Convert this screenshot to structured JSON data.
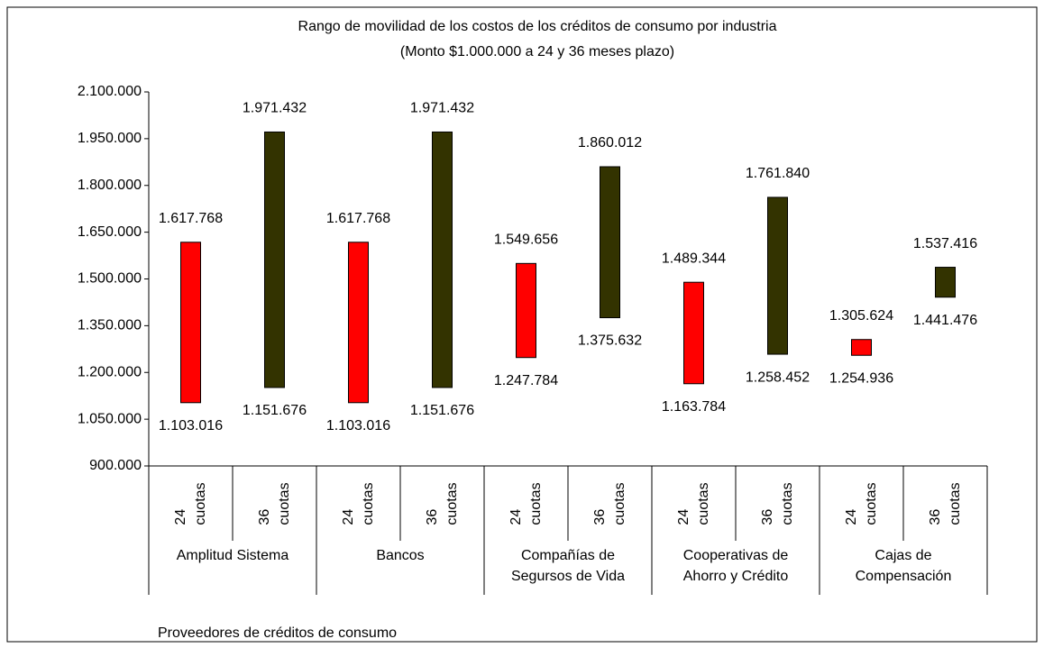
{
  "chart_data": {
    "type": "range-bar",
    "title": "Rango de movilidad de los costos de los créditos de consumo por industria",
    "subtitle": "(Monto $1.000.000 a 24 y 36 meses plazo)",
    "x_label": "Proveedores de créditos de consumo",
    "groups": [
      "Amplitud Sistema",
      "Bancos",
      "Compañías de\nSegursos de Vida",
      "Cooperativas de\nAhorro y Crédito",
      "Cajas de\nCompensación"
    ],
    "categories": [
      "24\ncuotas",
      "36\ncuotas",
      "24\ncuotas",
      "36\ncuotas",
      "24\ncuotas",
      "36\ncuotas",
      "24\ncuotas",
      "36\ncuotas",
      "24\ncuotas",
      "36\ncuotas"
    ],
    "high": [
      1617768,
      1971432,
      1617768,
      1971432,
      1549656,
      1860012,
      1489344,
      1761840,
      1305624,
      1537416
    ],
    "high_labels": [
      "1.617.768",
      "1.971.432",
      "1.617.768",
      "1.971.432",
      "1.549.656",
      "1.860.012",
      "1.489.344",
      "1.761.840",
      "1.305.624",
      "1.537.416"
    ],
    "low": [
      1103016,
      1151676,
      1103016,
      1151676,
      1247784,
      1375632,
      1163784,
      1258452,
      1254936,
      1441476
    ],
    "low_labels": [
      "1.103.016",
      "1.151.676",
      "1.103.016",
      "1.151.676",
      "1.247.784",
      "1.375.632",
      "1.163.784",
      "1.258.452",
      "1.254.936",
      "1.441.476"
    ],
    "colors": [
      "#ff0000",
      "#333300",
      "#ff0000",
      "#333300",
      "#ff0000",
      "#333300",
      "#ff0000",
      "#333300",
      "#ff0000",
      "#333300"
    ],
    "ylim": [
      900000,
      2100000
    ],
    "yticks": [
      {
        "value": 900000,
        "label": "900.000"
      },
      {
        "value": 1050000,
        "label": "1.050.000"
      },
      {
        "value": 1200000,
        "label": "1.200.000"
      },
      {
        "value": 1350000,
        "label": "1.350.000"
      },
      {
        "value": 1500000,
        "label": "1.500.000"
      },
      {
        "value": 1650000,
        "label": "1.650.000"
      },
      {
        "value": 1800000,
        "label": "1.800.000"
      },
      {
        "value": 1950000,
        "label": "1.950.000"
      },
      {
        "value": 2100000,
        "label": "2.100.000"
      }
    ]
  }
}
